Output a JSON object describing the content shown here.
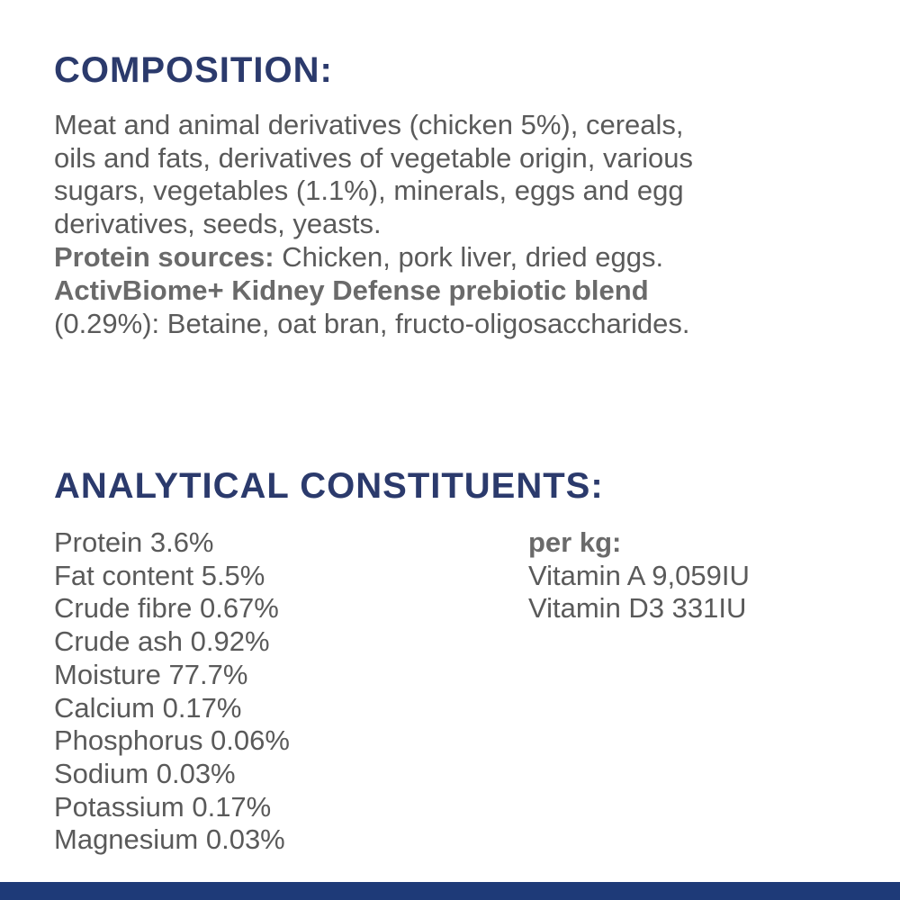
{
  "composition": {
    "title": "COMPOSITION:",
    "lines": [
      "Meat and animal derivatives (chicken 5%), cereals,",
      "oils and fats, derivatives of vegetable origin, various",
      "sugars, vegetables (1.1%), minerals, eggs and egg",
      "derivatives, seeds, yeasts."
    ],
    "protein_sources": {
      "label": "Protein sources:",
      "text": " Chicken, pork liver, dried eggs."
    },
    "prebiotic": {
      "label": "ActivBiome+ Kidney Defense prebiotic blend",
      "text": "(0.29%): Betaine, oat bran, fructo-oligosaccharides."
    }
  },
  "analytical": {
    "title": "ANALYTICAL CONSTITUENTS:",
    "items": [
      "Protein 3.6%",
      "Fat content 5.5%",
      "Crude fibre 0.67%",
      "Crude ash 0.92%",
      "Moisture 77.7%",
      "Calcium 0.17%",
      "Phosphorus 0.06%",
      "Sodium 0.03%",
      "Potassium 0.17%",
      "Magnesium 0.03%"
    ],
    "per_kg": {
      "label": "per kg:",
      "items": [
        "Vitamin A 9,059IU",
        "Vitamin D3 331IU"
      ]
    }
  }
}
